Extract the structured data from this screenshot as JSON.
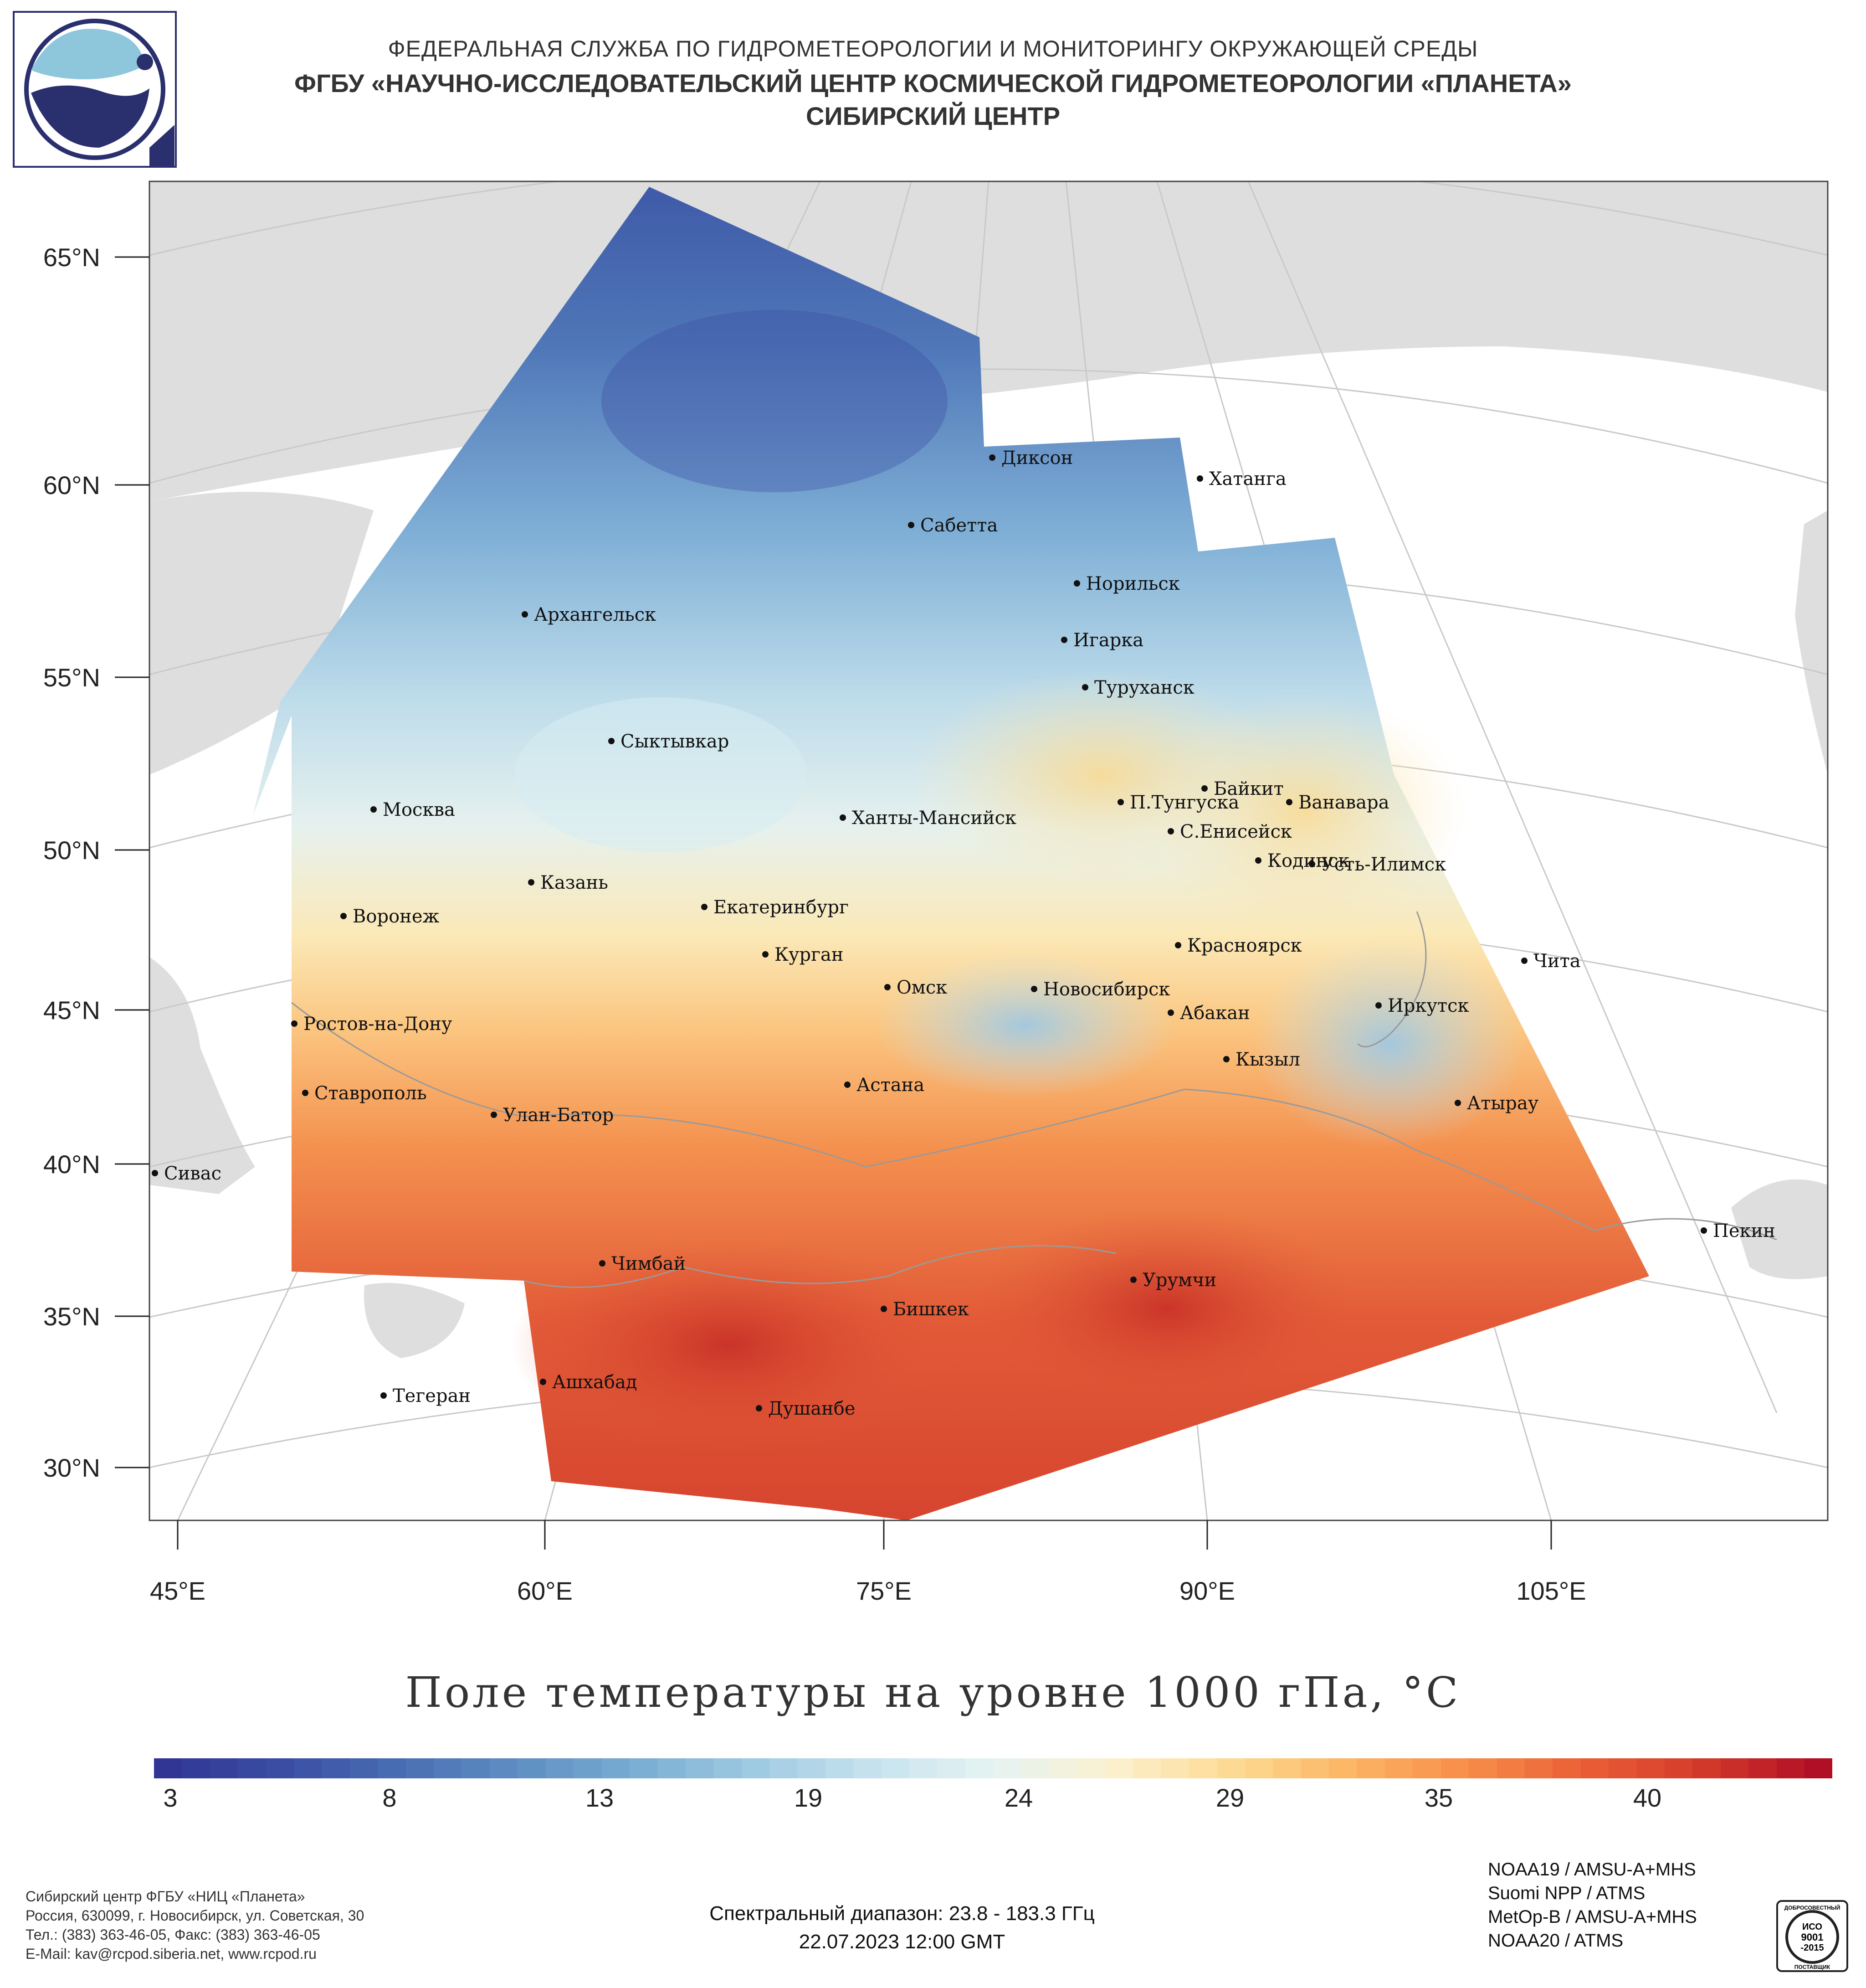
{
  "header": {
    "line1": "ФЕДЕРАЛЬНАЯ СЛУЖБА ПО ГИДРОМЕТЕОРОЛОГИИ И МОНИТОРИНГУ ОКРУЖАЮЩЕЙ СРЕДЫ",
    "line2": "ФГБУ «НАУЧНО-ИССЛЕДОВАТЕЛЬСКИЙ ЦЕНТР КОСМИЧЕСКОЙ ГИДРОМЕТЕОРОЛОГИИ «ПЛАНЕТА»",
    "line3": "СИБИРСКИЙ ЦЕНТР"
  },
  "map": {
    "lat_labels": [
      "65°N",
      "60°N",
      "55°N",
      "50°N",
      "45°N",
      "40°N",
      "35°N",
      "30°N"
    ],
    "lon_labels": [
      "45°E",
      "60°E",
      "75°E",
      "90°E",
      "105°E"
    ],
    "cities": [
      {
        "name": "Диксон"
      },
      {
        "name": "Хатанга"
      },
      {
        "name": "Сабетта"
      },
      {
        "name": "Норильск"
      },
      {
        "name": "Архангельск"
      },
      {
        "name": "Игарка"
      },
      {
        "name": "Туруханск"
      },
      {
        "name": "Сыктывкар"
      },
      {
        "name": "Байкит"
      },
      {
        "name": "П.Тунгуска"
      },
      {
        "name": "Ванавара"
      },
      {
        "name": "Москва"
      },
      {
        "name": "Ханты-Мансийск"
      },
      {
        "name": "С.Енисейск"
      },
      {
        "name": "Кодинск"
      },
      {
        "name": "Усть-Илимск"
      },
      {
        "name": "Казань"
      },
      {
        "name": "Воронеж"
      },
      {
        "name": "Екатеринбург"
      },
      {
        "name": "Красноярск"
      },
      {
        "name": "Курган"
      },
      {
        "name": "Чита"
      },
      {
        "name": "Омск"
      },
      {
        "name": "Новосибирск"
      },
      {
        "name": "Иркутск"
      },
      {
        "name": "Ростов-на-Дону"
      },
      {
        "name": "Абакан"
      },
      {
        "name": "Кызыл"
      },
      {
        "name": "Астана"
      },
      {
        "name": "Ставрополь"
      },
      {
        "name": "Улан-Батор"
      },
      {
        "name": "Атырау"
      },
      {
        "name": "Сивас"
      },
      {
        "name": "Пекин"
      },
      {
        "name": "Чимбай"
      },
      {
        "name": "Урумчи"
      },
      {
        "name": "Бишкек"
      },
      {
        "name": "Ашхабад"
      },
      {
        "name": "Тегеран"
      },
      {
        "name": "Душанбе"
      }
    ]
  },
  "colorbar": {
    "title": "Поле температуры на уровне 1000 гПа, °С",
    "ticks": [
      "3",
      "8",
      "13",
      "19",
      "24",
      "29",
      "35",
      "40"
    ],
    "colors": [
      "#313695",
      "#3b4ea3",
      "#4a6fb3",
      "#5f8fc3",
      "#7aaed3",
      "#a0cbe2",
      "#c7e3ee",
      "#e6f3f3",
      "#fbf1cf",
      "#fddb95",
      "#fcb665",
      "#f78e4a",
      "#ea5f36",
      "#d43a2a",
      "#b10f26"
    ]
  },
  "footer": {
    "org_lines": [
      "Сибирский центр ФГБУ «НИЦ «Планета»",
      "Россия, 630099, г. Новосибирск, ул. Советская, 30",
      "Тел.: (383) 363-46-05, Факс: (383) 363-46-05",
      "E-Mail: kav@rcpod.siberia.net, www.rcpod.ru"
    ],
    "spectral": "Спектральный диапазон: 23.8 - 183.3 ГГц",
    "datetime": "22.07.2023 12:00 GMT",
    "instruments": [
      "NOAA19 / AMSU-A+MHS",
      "Suomi NPP / ATMS",
      "MetOp-B / AMSU-A+MHS",
      "NOAA20 / ATMS"
    ],
    "iso_text": [
      "ДОБРОСОВЕСТНЫЙ",
      "ИСО",
      "9001",
      "-2015",
      "ПОСТАВЩИК"
    ]
  }
}
